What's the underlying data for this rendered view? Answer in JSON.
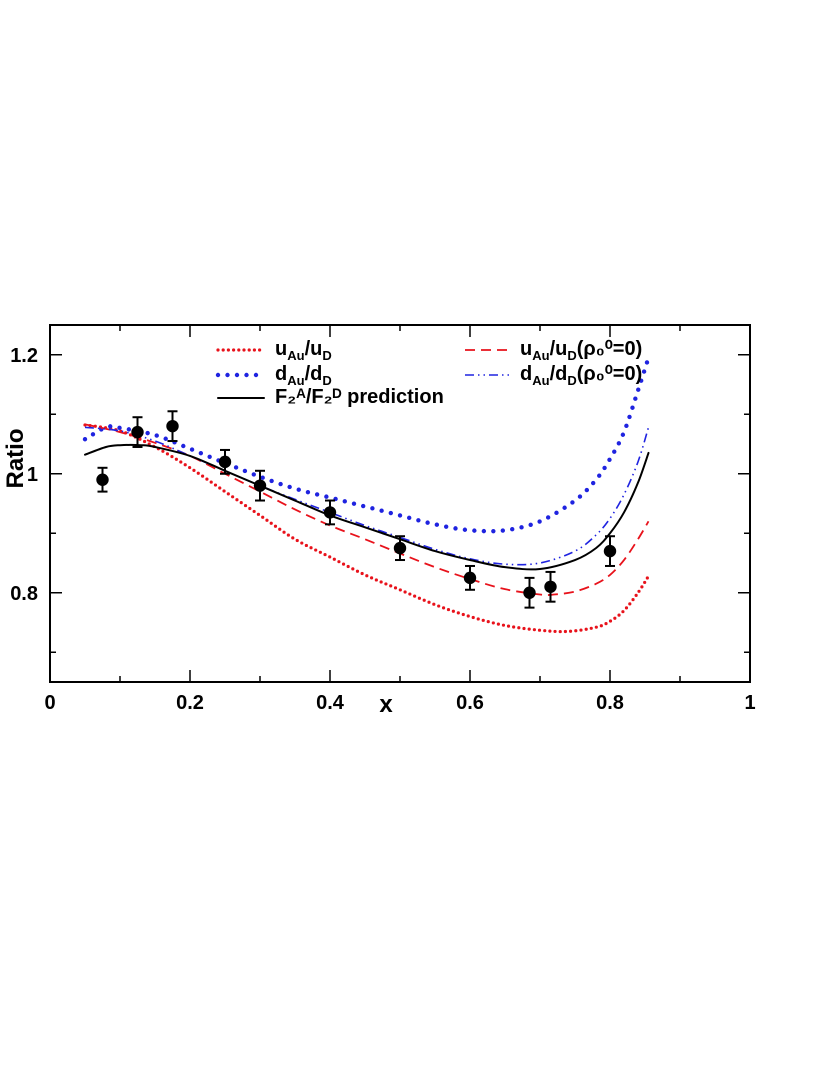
{
  "chart_data": {
    "type": "line",
    "xlabel": "x",
    "ylabel": "Ratio",
    "xlim": [
      0,
      1
    ],
    "ylim": [
      0.65,
      1.25
    ],
    "x_ticks": [
      "0",
      "0.2",
      "0.4",
      "0.6",
      "0.8",
      "1"
    ],
    "y_ticks": [
      "0.8",
      "1",
      "1.2"
    ],
    "grid": false,
    "legend_placement": "top",
    "legend": {
      "u_ratio": {
        "main1": "u",
        "sub1": "Au",
        "main2": "/u",
        "sub2": "D",
        "suffix": ""
      },
      "d_ratio": {
        "main1": "d",
        "sub1": "Au",
        "main2": "/d",
        "sub2": "D",
        "suffix": ""
      },
      "f2_ratio": {
        "text": "F₂ᴬ/F₂ᴰ prediction"
      },
      "u_ratio_rho0": {
        "main1": "u",
        "sub1": "Au",
        "main2": "/u",
        "sub2": "D",
        "suffix": "(ρ₀⁰=0)"
      },
      "d_ratio_rho0": {
        "main1": "d",
        "sub1": "Au",
        "main2": "/d",
        "sub2": "D",
        "suffix": "(ρ₀⁰=0)"
      }
    },
    "series": [
      {
        "key": "u_ratio",
        "style": "dotted",
        "color": "#e8121b",
        "x": [
          0.05,
          0.1,
          0.15,
          0.2,
          0.25,
          0.3,
          0.35,
          0.4,
          0.45,
          0.5,
          0.55,
          0.6,
          0.65,
          0.7,
          0.74,
          0.78,
          0.8,
          0.82,
          0.84,
          0.855
        ],
        "y": [
          1.082,
          1.072,
          1.045,
          1.01,
          0.97,
          0.93,
          0.89,
          0.86,
          0.83,
          0.805,
          0.78,
          0.76,
          0.745,
          0.737,
          0.735,
          0.742,
          0.752,
          0.77,
          0.8,
          0.828
        ]
      },
      {
        "key": "d_ratio",
        "style": "dotted-large",
        "color": "#1f23e0",
        "x": [
          0.05,
          0.08,
          0.1,
          0.15,
          0.2,
          0.25,
          0.3,
          0.35,
          0.4,
          0.45,
          0.5,
          0.55,
          0.6,
          0.65,
          0.7,
          0.75,
          0.78,
          0.8,
          0.82,
          0.84,
          0.855
        ],
        "y": [
          1.058,
          1.078,
          1.077,
          1.065,
          1.042,
          1.018,
          0.995,
          0.975,
          0.96,
          0.945,
          0.93,
          0.915,
          0.905,
          0.905,
          0.92,
          0.955,
          0.99,
          1.025,
          1.07,
          1.14,
          1.195
        ]
      },
      {
        "key": "u_ratio_rho0",
        "style": "dashed",
        "color": "#e8121b",
        "x": [
          0.05,
          0.1,
          0.15,
          0.2,
          0.25,
          0.3,
          0.35,
          0.4,
          0.45,
          0.5,
          0.55,
          0.6,
          0.65,
          0.7,
          0.72,
          0.75,
          0.78,
          0.8,
          0.82,
          0.84,
          0.855
        ],
        "y": [
          1.083,
          1.07,
          1.052,
          1.03,
          1.0,
          0.97,
          0.94,
          0.913,
          0.89,
          0.866,
          0.843,
          0.823,
          0.806,
          0.797,
          0.797,
          0.802,
          0.815,
          0.83,
          0.855,
          0.89,
          0.92
        ]
      },
      {
        "key": "d_ratio_rho0",
        "style": "dashdot",
        "color": "#1f23e0",
        "x": [
          0.05,
          0.1,
          0.15,
          0.2,
          0.25,
          0.3,
          0.35,
          0.4,
          0.45,
          0.5,
          0.55,
          0.6,
          0.65,
          0.7,
          0.75,
          0.78,
          0.8,
          0.82,
          0.84,
          0.855
        ],
        "y": [
          1.078,
          1.072,
          1.055,
          1.03,
          1.005,
          0.98,
          0.957,
          0.935,
          0.913,
          0.893,
          0.873,
          0.857,
          0.848,
          0.85,
          0.87,
          0.897,
          0.925,
          0.965,
          1.02,
          1.078
        ]
      },
      {
        "key": "f2_ratio",
        "style": "solid",
        "color": "#000000",
        "x": [
          0.05,
          0.08,
          0.1,
          0.13,
          0.15,
          0.2,
          0.25,
          0.3,
          0.35,
          0.4,
          0.45,
          0.5,
          0.55,
          0.6,
          0.65,
          0.7,
          0.75,
          0.78,
          0.8,
          0.82,
          0.84,
          0.855
        ],
        "y": [
          1.032,
          1.045,
          1.048,
          1.048,
          1.045,
          1.03,
          1.005,
          0.98,
          0.955,
          0.93,
          0.91,
          0.89,
          0.87,
          0.855,
          0.843,
          0.84,
          0.855,
          0.875,
          0.9,
          0.935,
          0.985,
          1.035
        ]
      }
    ],
    "points": {
      "name": "data",
      "x": [
        0.075,
        0.125,
        0.175,
        0.25,
        0.3,
        0.4,
        0.5,
        0.6,
        0.685,
        0.715,
        0.8
      ],
      "y": [
        0.99,
        1.07,
        1.08,
        1.02,
        0.98,
        0.935,
        0.875,
        0.825,
        0.8,
        0.81,
        0.87
      ],
      "err": [
        0.02,
        0.025,
        0.025,
        0.02,
        0.025,
        0.02,
        0.02,
        0.02,
        0.025,
        0.025,
        0.025
      ]
    }
  }
}
